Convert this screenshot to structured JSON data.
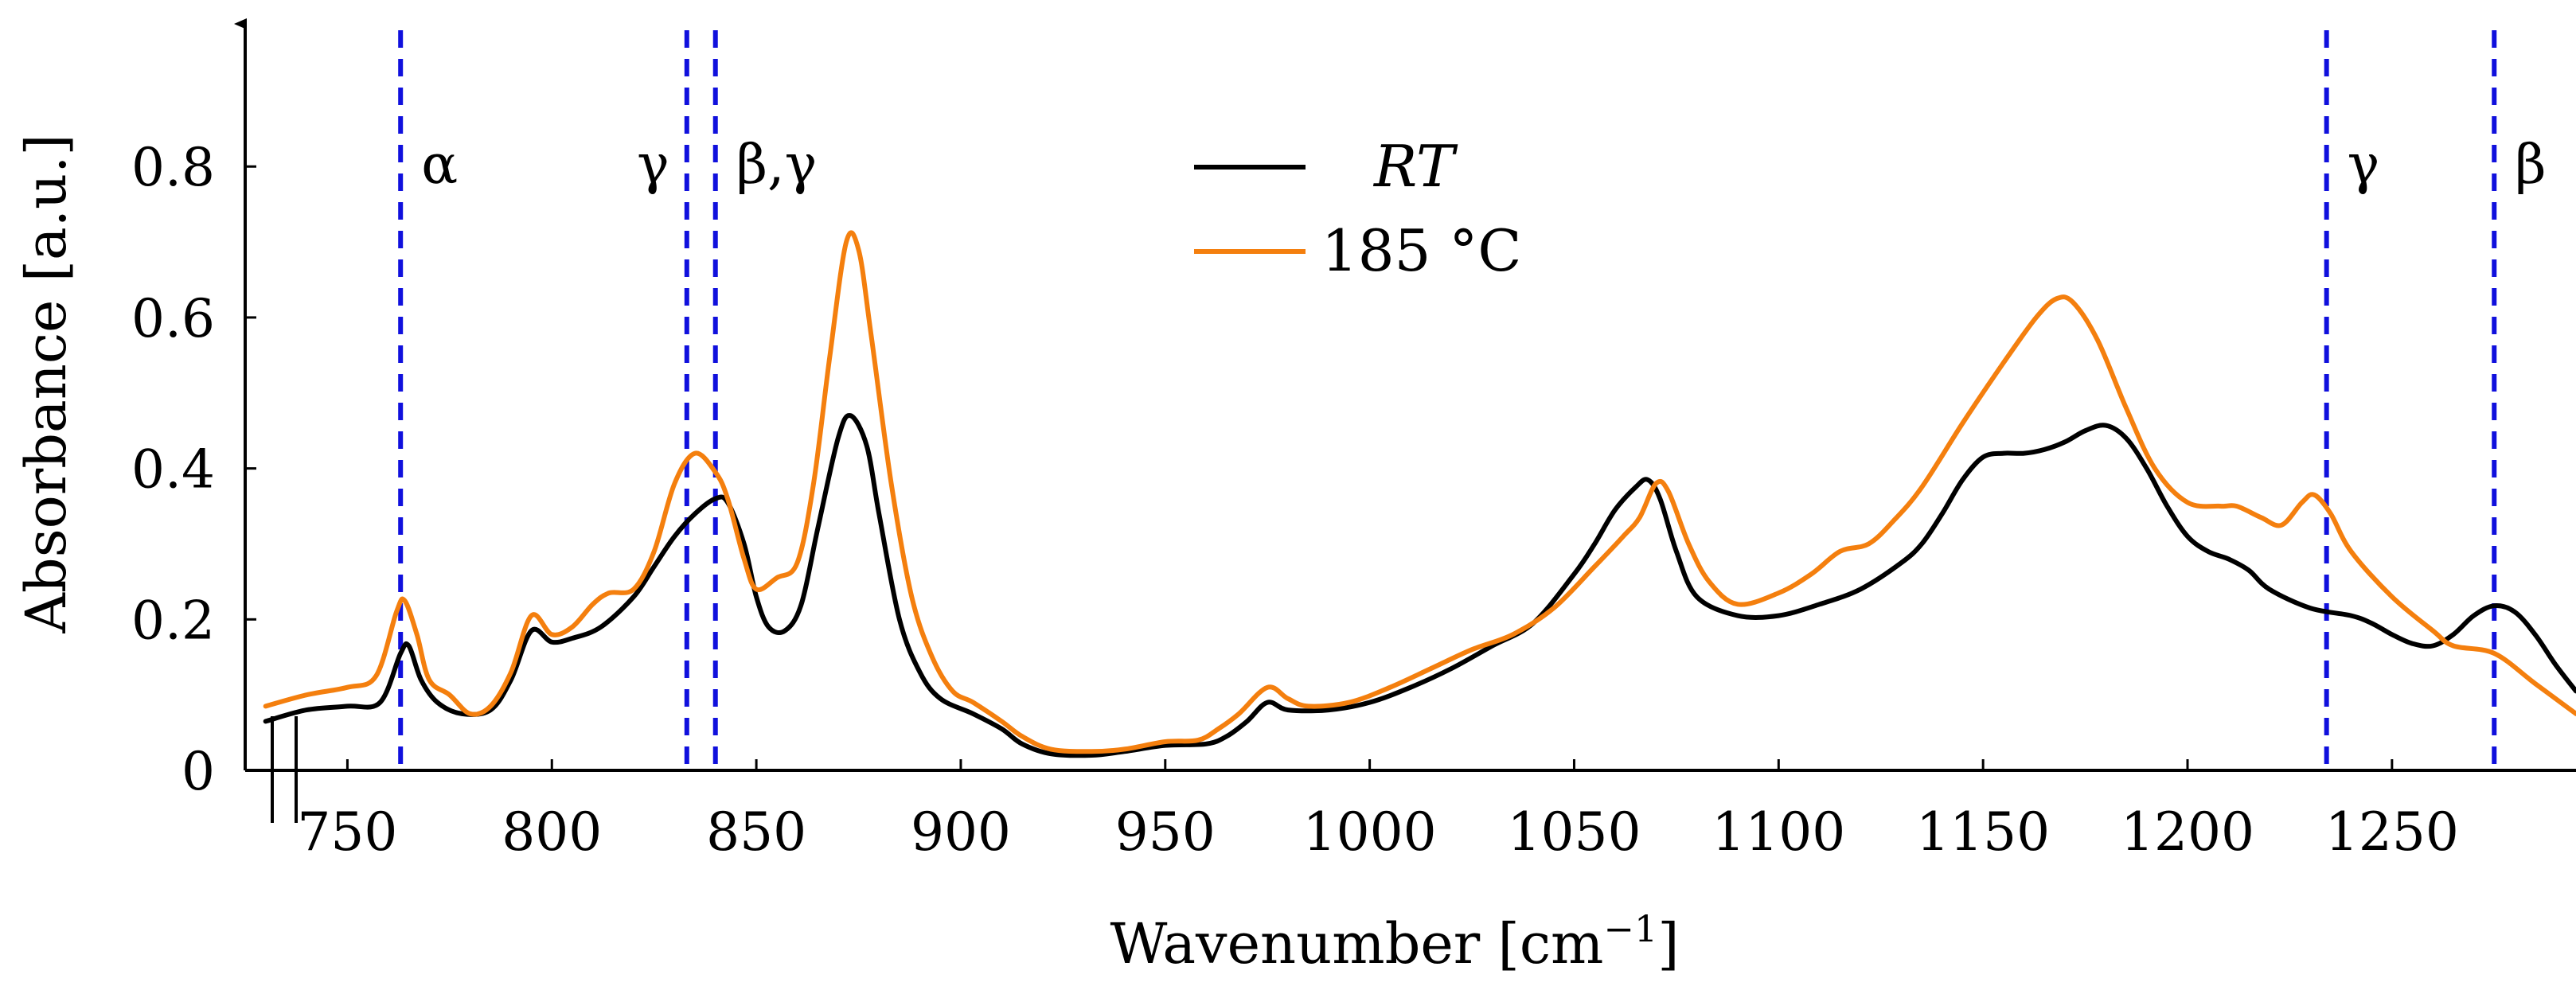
{
  "chart_data": {
    "type": "line",
    "xlabel": "Wavenumber [cm",
    "xlabel_sup": "−1",
    "xlabel_end": "]",
    "ylabel": "Absorbance [a.u.]",
    "xlim": [
      725,
      1295
    ],
    "ylim": [
      0,
      0.97
    ],
    "x_ticks": [
      750,
      800,
      850,
      900,
      950,
      1000,
      1050,
      1100,
      1150,
      1200,
      1250
    ],
    "y_ticks": [
      {
        "value": 0,
        "label": "0"
      },
      {
        "value": 0.2,
        "label": "0.2"
      },
      {
        "value": 0.4,
        "label": "0.4"
      },
      {
        "value": 0.6,
        "label": "0.6"
      },
      {
        "value": 0.8,
        "label": "0.8"
      }
    ],
    "axis_break": true,
    "grid": false,
    "legend_position": "top-center",
    "reference_lines": [
      {
        "x": 763,
        "label": "α"
      },
      {
        "x": 833,
        "label": "γ"
      },
      {
        "x": 840,
        "label": "β,γ"
      },
      {
        "x": 1234,
        "label": "γ"
      },
      {
        "x": 1275,
        "label": "β"
      }
    ],
    "reference_color": "#1010dd",
    "series": [
      {
        "name": "RT",
        "color": "#000000",
        "points": [
          [
            730,
            0.065
          ],
          [
            740,
            0.08
          ],
          [
            750,
            0.085
          ],
          [
            758,
            0.09
          ],
          [
            763,
            0.155
          ],
          [
            765,
            0.165
          ],
          [
            768,
            0.12
          ],
          [
            772,
            0.09
          ],
          [
            778,
            0.075
          ],
          [
            785,
            0.08
          ],
          [
            790,
            0.12
          ],
          [
            795,
            0.185
          ],
          [
            800,
            0.17
          ],
          [
            805,
            0.175
          ],
          [
            812,
            0.19
          ],
          [
            820,
            0.23
          ],
          [
            825,
            0.27
          ],
          [
            830,
            0.31
          ],
          [
            835,
            0.34
          ],
          [
            840,
            0.36
          ],
          [
            843,
            0.355
          ],
          [
            847,
            0.3
          ],
          [
            850,
            0.23
          ],
          [
            853,
            0.19
          ],
          [
            857,
            0.185
          ],
          [
            861,
            0.22
          ],
          [
            865,
            0.32
          ],
          [
            870,
            0.44
          ],
          [
            873,
            0.47
          ],
          [
            877,
            0.43
          ],
          [
            880,
            0.34
          ],
          [
            885,
            0.2
          ],
          [
            890,
            0.13
          ],
          [
            895,
            0.095
          ],
          [
            903,
            0.075
          ],
          [
            910,
            0.055
          ],
          [
            915,
            0.035
          ],
          [
            922,
            0.022
          ],
          [
            932,
            0.02
          ],
          [
            940,
            0.025
          ],
          [
            950,
            0.033
          ],
          [
            960,
            0.035
          ],
          [
            965,
            0.045
          ],
          [
            970,
            0.065
          ],
          [
            975,
            0.09
          ],
          [
            980,
            0.08
          ],
          [
            990,
            0.08
          ],
          [
            1000,
            0.09
          ],
          [
            1010,
            0.11
          ],
          [
            1020,
            0.135
          ],
          [
            1030,
            0.165
          ],
          [
            1040,
            0.195
          ],
          [
            1050,
            0.26
          ],
          [
            1055,
            0.3
          ],
          [
            1060,
            0.345
          ],
          [
            1065,
            0.375
          ],
          [
            1068,
            0.385
          ],
          [
            1071,
            0.36
          ],
          [
            1075,
            0.29
          ],
          [
            1080,
            0.23
          ],
          [
            1090,
            0.205
          ],
          [
            1100,
            0.205
          ],
          [
            1110,
            0.22
          ],
          [
            1120,
            0.24
          ],
          [
            1130,
            0.275
          ],
          [
            1135,
            0.3
          ],
          [
            1140,
            0.34
          ],
          [
            1145,
            0.385
          ],
          [
            1150,
            0.415
          ],
          [
            1155,
            0.42
          ],
          [
            1160,
            0.42
          ],
          [
            1165,
            0.425
          ],
          [
            1170,
            0.435
          ],
          [
            1175,
            0.45
          ],
          [
            1180,
            0.457
          ],
          [
            1185,
            0.44
          ],
          [
            1190,
            0.4
          ],
          [
            1195,
            0.35
          ],
          [
            1200,
            0.31
          ],
          [
            1205,
            0.29
          ],
          [
            1210,
            0.28
          ],
          [
            1215,
            0.265
          ],
          [
            1220,
            0.24
          ],
          [
            1230,
            0.215
          ],
          [
            1240,
            0.205
          ],
          [
            1245,
            0.195
          ],
          [
            1250,
            0.18
          ],
          [
            1255,
            0.168
          ],
          [
            1260,
            0.165
          ],
          [
            1265,
            0.18
          ],
          [
            1270,
            0.205
          ],
          [
            1275,
            0.218
          ],
          [
            1280,
            0.21
          ],
          [
            1285,
            0.18
          ],
          [
            1290,
            0.14
          ],
          [
            1295,
            0.105
          ]
        ]
      },
      {
        "name": "185 °C",
        "color": "#f47f0e",
        "points": [
          [
            730,
            0.085
          ],
          [
            740,
            0.1
          ],
          [
            750,
            0.11
          ],
          [
            757,
            0.125
          ],
          [
            762,
            0.21
          ],
          [
            764,
            0.225
          ],
          [
            767,
            0.18
          ],
          [
            770,
            0.12
          ],
          [
            775,
            0.1
          ],
          [
            780,
            0.075
          ],
          [
            785,
            0.085
          ],
          [
            790,
            0.13
          ],
          [
            795,
            0.205
          ],
          [
            800,
            0.18
          ],
          [
            805,
            0.19
          ],
          [
            810,
            0.22
          ],
          [
            814,
            0.235
          ],
          [
            820,
            0.24
          ],
          [
            825,
            0.29
          ],
          [
            830,
            0.38
          ],
          [
            835,
            0.42
          ],
          [
            840,
            0.395
          ],
          [
            843,
            0.36
          ],
          [
            847,
            0.28
          ],
          [
            850,
            0.24
          ],
          [
            855,
            0.255
          ],
          [
            860,
            0.275
          ],
          [
            864,
            0.38
          ],
          [
            868,
            0.55
          ],
          [
            872,
            0.7
          ],
          [
            875,
            0.69
          ],
          [
            878,
            0.58
          ],
          [
            883,
            0.38
          ],
          [
            888,
            0.23
          ],
          [
            893,
            0.15
          ],
          [
            898,
            0.105
          ],
          [
            903,
            0.09
          ],
          [
            910,
            0.065
          ],
          [
            915,
            0.045
          ],
          [
            922,
            0.028
          ],
          [
            932,
            0.025
          ],
          [
            940,
            0.028
          ],
          [
            950,
            0.038
          ],
          [
            958,
            0.04
          ],
          [
            963,
            0.055
          ],
          [
            968,
            0.075
          ],
          [
            975,
            0.11
          ],
          [
            980,
            0.095
          ],
          [
            985,
            0.085
          ],
          [
            995,
            0.09
          ],
          [
            1005,
            0.11
          ],
          [
            1015,
            0.135
          ],
          [
            1025,
            0.16
          ],
          [
            1035,
            0.18
          ],
          [
            1045,
            0.215
          ],
          [
            1055,
            0.27
          ],
          [
            1062,
            0.31
          ],
          [
            1066,
            0.335
          ],
          [
            1070,
            0.38
          ],
          [
            1073,
            0.37
          ],
          [
            1078,
            0.3
          ],
          [
            1083,
            0.25
          ],
          [
            1090,
            0.22
          ],
          [
            1100,
            0.235
          ],
          [
            1108,
            0.26
          ],
          [
            1115,
            0.29
          ],
          [
            1122,
            0.3
          ],
          [
            1128,
            0.33
          ],
          [
            1135,
            0.375
          ],
          [
            1145,
            0.46
          ],
          [
            1155,
            0.54
          ],
          [
            1163,
            0.6
          ],
          [
            1168,
            0.625
          ],
          [
            1172,
            0.62
          ],
          [
            1178,
            0.57
          ],
          [
            1185,
            0.48
          ],
          [
            1192,
            0.4
          ],
          [
            1200,
            0.355
          ],
          [
            1208,
            0.35
          ],
          [
            1212,
            0.35
          ],
          [
            1218,
            0.335
          ],
          [
            1223,
            0.325
          ],
          [
            1228,
            0.355
          ],
          [
            1231,
            0.365
          ],
          [
            1235,
            0.34
          ],
          [
            1240,
            0.29
          ],
          [
            1250,
            0.23
          ],
          [
            1260,
            0.185
          ],
          [
            1265,
            0.165
          ],
          [
            1275,
            0.155
          ],
          [
            1285,
            0.115
          ],
          [
            1295,
            0.075
          ]
        ]
      }
    ]
  }
}
